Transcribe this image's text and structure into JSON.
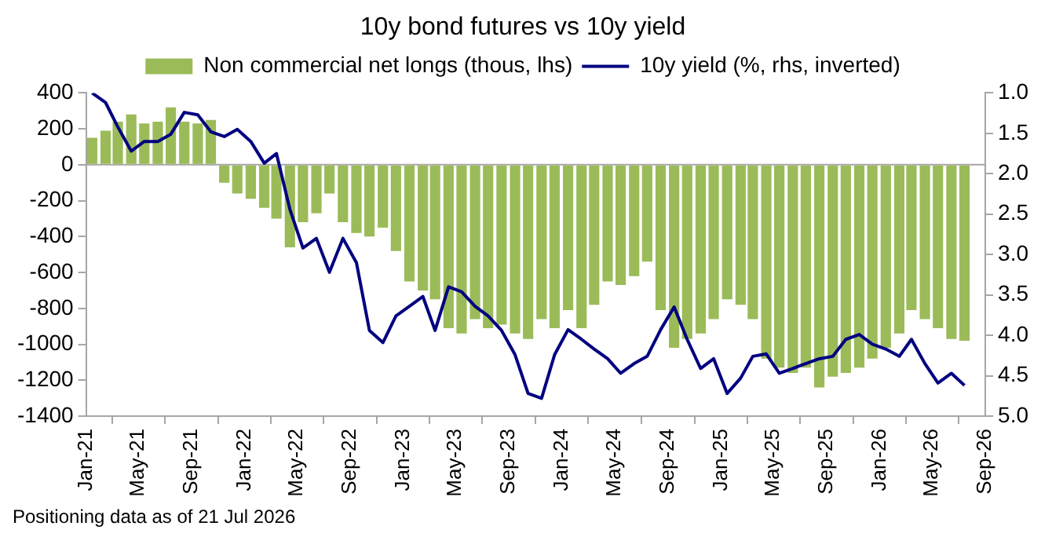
{
  "chart_data": {
    "type": "bar",
    "title": "10y bond futures vs 10y yield",
    "x": [
      "2021-01-15",
      "2021-02-15",
      "2021-03-15",
      "2021-04-15",
      "2021-05-15",
      "2021-06-15",
      "2021-07-15",
      "2021-08-15",
      "2021-09-15",
      "2021-10-15",
      "2021-11-15",
      "2021-12-15",
      "2022-01-15",
      "2022-02-15",
      "2022-03-15",
      "2022-04-15",
      "2022-05-15",
      "2022-06-15",
      "2022-07-15",
      "2022-08-15",
      "2022-09-15",
      "2022-10-15",
      "2022-11-15",
      "2022-12-15",
      "2023-01-15",
      "2023-02-15",
      "2023-03-15",
      "2023-04-15",
      "2023-05-15",
      "2023-06-15",
      "2023-07-15",
      "2023-08-15",
      "2023-09-15",
      "2023-10-15",
      "2023-11-15",
      "2023-12-15",
      "2024-01-15",
      "2024-02-15",
      "2024-03-15",
      "2024-04-15",
      "2024-05-15",
      "2024-06-15",
      "2024-07-15",
      "2024-08-15",
      "2024-09-15",
      "2024-10-15",
      "2024-11-15",
      "2024-12-15",
      "2025-01-15",
      "2025-02-15",
      "2025-03-15",
      "2025-04-15",
      "2025-05-15",
      "2025-06-15",
      "2025-07-15",
      "2025-08-15",
      "2025-09-15",
      "2025-10-15",
      "2025-11-15",
      "2025-12-15",
      "2026-01-15",
      "2026-02-15",
      "2026-03-15",
      "2026-04-15",
      "2026-05-15",
      "2026-06-15",
      "2026-07-15"
    ],
    "series": [
      {
        "name": "Non commercial net longs (thous, lhs)",
        "color": "#9bbb59",
        "values": [
          150,
          190,
          240,
          280,
          230,
          240,
          320,
          240,
          230,
          250,
          -100,
          -160,
          -190,
          -240,
          -300,
          -460,
          -320,
          -270,
          -160,
          -320,
          -380,
          -400,
          -350,
          -480,
          -650,
          -700,
          -750,
          -910,
          -940,
          -860,
          -910,
          -890,
          -940,
          -970,
          -860,
          -910,
          -810,
          -910,
          -780,
          -650,
          -670,
          -620,
          -540,
          -810,
          -1020,
          -970,
          -940,
          -860,
          -750,
          -780,
          -860,
          -1080,
          -1130,
          -1160,
          -1130,
          -1240,
          -1180,
          -1160,
          -1130,
          -1080,
          -1020,
          -940,
          -810,
          -860,
          -910,
          -970,
          -980
        ]
      },
      {
        "name": "10y yield (%, rhs, inverted)",
        "type": "line",
        "axis": "y2",
        "color": "#000080",
        "values": [
          1.0,
          1.12,
          1.42,
          1.72,
          1.6,
          1.6,
          1.51,
          1.24,
          1.27,
          1.48,
          1.54,
          1.45,
          1.6,
          1.87,
          1.75,
          2.44,
          2.92,
          2.8,
          3.22,
          2.8,
          3.1,
          3.94,
          4.09,
          3.76,
          3.64,
          3.52,
          3.94,
          3.4,
          3.46,
          3.64,
          3.76,
          3.94,
          4.24,
          4.72,
          4.78,
          4.24,
          3.93,
          4.05,
          4.17,
          4.29,
          4.47,
          4.35,
          4.26,
          3.93,
          3.65,
          4.05,
          4.41,
          4.29,
          4.72,
          4.53,
          4.26,
          4.23,
          4.47,
          4.41,
          4.35,
          4.29,
          4.26,
          4.05,
          3.99,
          4.11,
          4.17,
          4.26,
          4.05,
          4.35,
          4.59,
          4.47,
          4.62
        ]
      }
    ],
    "xlim": [
      "2021-01-01",
      "2026-09-01"
    ],
    "xticks": [
      {
        "value": "2021-01-01",
        "label": "Jan-21"
      },
      {
        "value": "2021-05-01",
        "label": "May-21"
      },
      {
        "value": "2021-09-01",
        "label": "Sep-21"
      },
      {
        "value": "2022-01-01",
        "label": "Jan-22"
      },
      {
        "value": "2022-05-01",
        "label": "May-22"
      },
      {
        "value": "2022-09-01",
        "label": "Sep-22"
      },
      {
        "value": "2023-01-01",
        "label": "Jan-23"
      },
      {
        "value": "2023-05-01",
        "label": "May-23"
      },
      {
        "value": "2023-09-01",
        "label": "Sep-23"
      },
      {
        "value": "2024-01-01",
        "label": "Jan-24"
      },
      {
        "value": "2024-05-01",
        "label": "May-24"
      },
      {
        "value": "2024-09-01",
        "label": "Sep-24"
      },
      {
        "value": "2025-01-01",
        "label": "Jan-25"
      },
      {
        "value": "2025-05-01",
        "label": "May-25"
      },
      {
        "value": "2025-09-01",
        "label": "Sep-25"
      },
      {
        "value": "2026-01-01",
        "label": "Jan-26"
      },
      {
        "value": "2026-05-01",
        "label": "May-26"
      },
      {
        "value": "2026-09-01",
        "label": "Sep-26"
      }
    ],
    "ylim": [
      -1400,
      400
    ],
    "yticks": [
      -1400,
      -1200,
      -1000,
      -800,
      -600,
      -400,
      -200,
      0,
      200,
      400
    ],
    "y2lim": [
      5.0,
      1.0
    ],
    "y2ticks": [
      {
        "value": 5.0,
        "label": "5.0"
      },
      {
        "value": 4.5,
        "label": "4.5"
      },
      {
        "value": 4.0,
        "label": "4.0"
      },
      {
        "value": 3.5,
        "label": "3.5"
      },
      {
        "value": 3.0,
        "label": "3.0"
      },
      {
        "value": 2.5,
        "label": "2.5"
      },
      {
        "value": 2.0,
        "label": "2.0"
      },
      {
        "value": 1.5,
        "label": "1.5"
      },
      {
        "value": 1.0,
        "label": "1.0"
      }
    ],
    "ref_lines": [
      {
        "axis": "y",
        "value": 0,
        "color": "#a6a6a6"
      }
    ],
    "grid": false,
    "legend": "top",
    "marker": "none",
    "line_style": "solid",
    "annotations": [
      "Positioning data as of 21 Jul 2026"
    ]
  }
}
